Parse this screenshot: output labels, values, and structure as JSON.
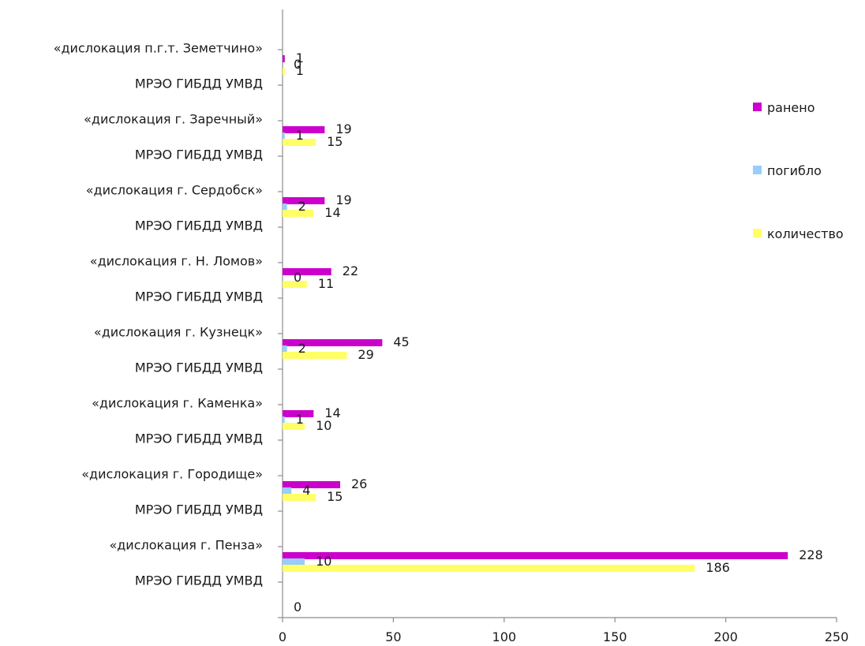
{
  "chart_data": {
    "type": "bar",
    "orientation": "horizontal",
    "categories": [
      "МРЭО ГИБДД УМВД",
      "«дислокация г. Пенза»",
      "МРЭО ГИБДД УМВД",
      "«дислокация г. Городище»",
      "МРЭО ГИБДД УМВД",
      "«дислокация г. Каменка»",
      "МРЭО ГИБДД УМВД",
      "«дислокация г. Кузнецк»",
      "МРЭО ГИБДД УМВД",
      "«дислокация г. Н. Ломов»",
      "МРЭО ГИБДД УМВД",
      "«дислокация г. Сердобск»",
      "МРЭО ГИБДД УМВД",
      "«дислокация г. Заречный»",
      "МРЭО ГИБДД УМВД",
      "«дислокация п.г.т. Земетчино»"
    ],
    "series": [
      {
        "name": "ранено",
        "color": "#CC00CC",
        "values": [
          228,
          null,
          26,
          null,
          14,
          null,
          45,
          null,
          22,
          null,
          19,
          null,
          19,
          null,
          1,
          null
        ]
      },
      {
        "name": "погибло",
        "color": "#99CCFF",
        "values": [
          10,
          null,
          4,
          null,
          1,
          null,
          2,
          null,
          0,
          null,
          2,
          null,
          1,
          null,
          0,
          null
        ]
      },
      {
        "name": "количество",
        "color": "#FFFF66",
        "values": [
          186,
          null,
          15,
          null,
          10,
          null,
          29,
          null,
          11,
          null,
          14,
          null,
          15,
          null,
          1,
          null
        ]
      }
    ],
    "extra_labels": [
      {
        "category_index": -1,
        "text": "0"
      }
    ],
    "xlim": [
      0,
      250
    ],
    "xticks": [
      0,
      50,
      100,
      150,
      200,
      250
    ],
    "legend": "right",
    "grid": false,
    "title": "",
    "xlabel": "",
    "ylabel": ""
  }
}
